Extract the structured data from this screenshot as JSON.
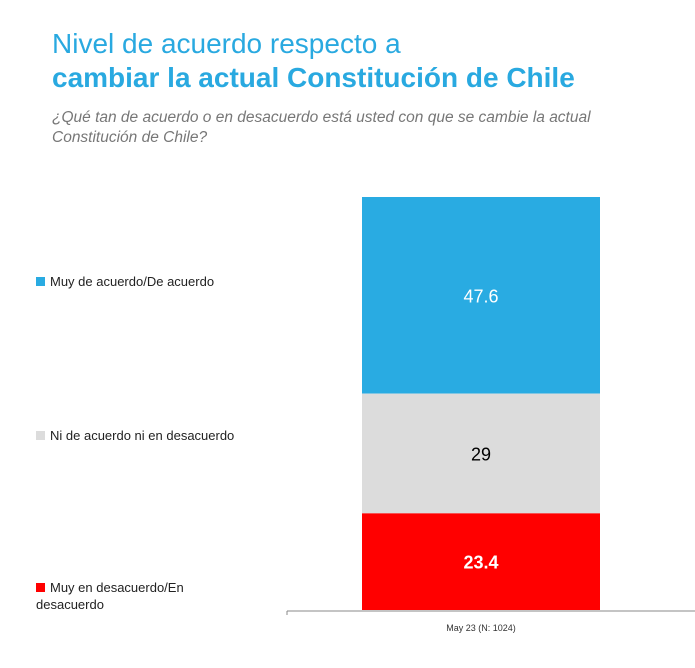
{
  "title_line1": "Nivel de acuerdo respecto a",
  "title_line2": "cambiar la actual Constitución de Chile",
  "subtitle": "¿Qué tan de acuerdo o en desacuerdo está usted con que se cambie la actual Constitución de Chile?",
  "chart_data": {
    "type": "bar",
    "stacked": true,
    "categories": [
      "May 23 (N: 1024)"
    ],
    "series": [
      {
        "name": "Muy de acuerdo/De acuerdo",
        "values": [
          47.6
        ],
        "color": "#29abe2",
        "label_color": "#ffffff"
      },
      {
        "name": "Ni de acuerdo ni en desacuerdo",
        "values": [
          29
        ],
        "color": "#dcdcdc",
        "label_color": "#000000"
      },
      {
        "name": "Muy en desacuerdo/En desacuerdo",
        "values": [
          23.4
        ],
        "color": "#ff0000",
        "label_color": "#ffffff"
      }
    ],
    "value_labels": [
      "47.6",
      "29",
      "23.4"
    ],
    "legend_position": "left",
    "grid": false
  }
}
